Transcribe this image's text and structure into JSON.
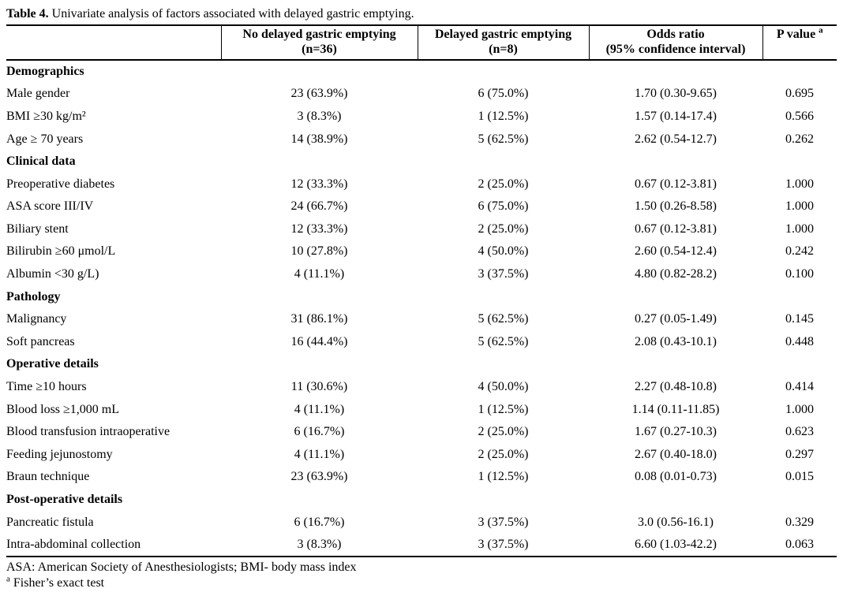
{
  "page": {
    "background": "#ffffff",
    "text_color": "#000000"
  },
  "caption": {
    "label": "Table 4.",
    "text": " Univariate analysis of factors associated with delayed gastric emptying."
  },
  "table": {
    "headers": {
      "row_label": "",
      "no_dge": {
        "line1": "No delayed gastric emptying",
        "line2": "(n=36)"
      },
      "dge": {
        "line1": "Delayed gastric emptying",
        "line2": "(n=8)"
      },
      "odds_ratio": {
        "line1": "Odds ratio",
        "line2": "(95% confidence interval)"
      },
      "p_value": {
        "text": "P value",
        "sup": "a"
      }
    },
    "sections": [
      {
        "name": "Demographics",
        "rows": [
          {
            "label": "Male gender",
            "no_dge": "23 (63.9%)",
            "dge": "6 (75.0%)",
            "odds_ratio": "1.70 (0.30-9.65)",
            "p_value": "0.695"
          },
          {
            "label": "BMI ≥30 kg/m²",
            "no_dge": "3 (8.3%)",
            "dge": "1 (12.5%)",
            "odds_ratio": "1.57 (0.14-17.4)",
            "p_value": "0.566"
          },
          {
            "label": "Age ≥ 70 years",
            "no_dge": "14 (38.9%)",
            "dge": "5 (62.5%)",
            "odds_ratio": "2.62 (0.54-12.7)",
            "p_value": "0.262"
          }
        ]
      },
      {
        "name": "Clinical data",
        "rows": [
          {
            "label": "Preoperative diabetes",
            "no_dge": "12 (33.3%)",
            "dge": "2 (25.0%)",
            "odds_ratio": "0.67 (0.12-3.81)",
            "p_value": "1.000"
          },
          {
            "label": "ASA score III/IV",
            "no_dge": "24 (66.7%)",
            "dge": "6 (75.0%)",
            "odds_ratio": "1.50 (0.26-8.58)",
            "p_value": "1.000"
          },
          {
            "label": "Biliary stent",
            "no_dge": "12 (33.3%)",
            "dge": "2 (25.0%)",
            "odds_ratio": "0.67 (0.12-3.81)",
            "p_value": "1.000"
          },
          {
            "label": "Bilirubin ≥60 μmol/L",
            "no_dge": "10 (27.8%)",
            "dge": "4 (50.0%)",
            "odds_ratio": "2.60 (0.54-12.4)",
            "p_value": "0.242"
          },
          {
            "label": "Albumin <30 g/L)",
            "no_dge": "4 (11.1%)",
            "dge": "3 (37.5%)",
            "odds_ratio": "4.80 (0.82-28.2)",
            "p_value": "0.100"
          }
        ]
      },
      {
        "name": "Pathology",
        "rows": [
          {
            "label": "Malignancy",
            "no_dge": "31 (86.1%)",
            "dge": "5 (62.5%)",
            "odds_ratio": "0.27 (0.05-1.49)",
            "p_value": "0.145"
          },
          {
            "label": "Soft pancreas",
            "no_dge": "16 (44.4%)",
            "dge": "5 (62.5%)",
            "odds_ratio": "2.08 (0.43-10.1)",
            "p_value": "0.448"
          }
        ]
      },
      {
        "name": "Operative details",
        "rows": [
          {
            "label": "Time ≥10 hours",
            "no_dge": "11 (30.6%)",
            "dge": "4 (50.0%)",
            "odds_ratio": "2.27 (0.48-10.8)",
            "p_value": "0.414"
          },
          {
            "label": "Blood loss ≥1,000 mL",
            "no_dge": "4 (11.1%)",
            "dge": "1 (12.5%)",
            "odds_ratio": "1.14 (0.11-11.85)",
            "p_value": "1.000"
          },
          {
            "label": "Blood transfusion intraoperative",
            "no_dge": "6 (16.7%)",
            "dge": "2 (25.0%)",
            "odds_ratio": "1.67 (0.27-10.3)",
            "p_value": "0.623"
          },
          {
            "label": "Feeding jejunostomy",
            "no_dge": "4 (11.1%)",
            "dge": "2 (25.0%)",
            "odds_ratio": "2.67 (0.40-18.0)",
            "p_value": "0.297"
          },
          {
            "label": "Braun technique",
            "no_dge": "23 (63.9%)",
            "dge": "1 (12.5%)",
            "odds_ratio": "0.08 (0.01-0.73)",
            "p_value": "0.015"
          }
        ]
      },
      {
        "name": "Post-operative details",
        "rows": [
          {
            "label": "Pancreatic fistula",
            "no_dge": "6 (16.7%)",
            "dge": "3 (37.5%)",
            "odds_ratio": "3.0 (0.56-16.1)",
            "p_value": "0.329"
          },
          {
            "label": "Intra-abdominal collection",
            "no_dge": "3 (8.3%)",
            "dge": "3 (37.5%)",
            "odds_ratio": "6.60 (1.03-42.2)",
            "p_value": "0.063"
          }
        ]
      }
    ]
  },
  "footnotes": {
    "abbreviations": "ASA: American Society of Anesthesiologists; BMI- body mass index",
    "fisher": {
      "sup": "a",
      "text": "Fisher’s exact test"
    }
  }
}
